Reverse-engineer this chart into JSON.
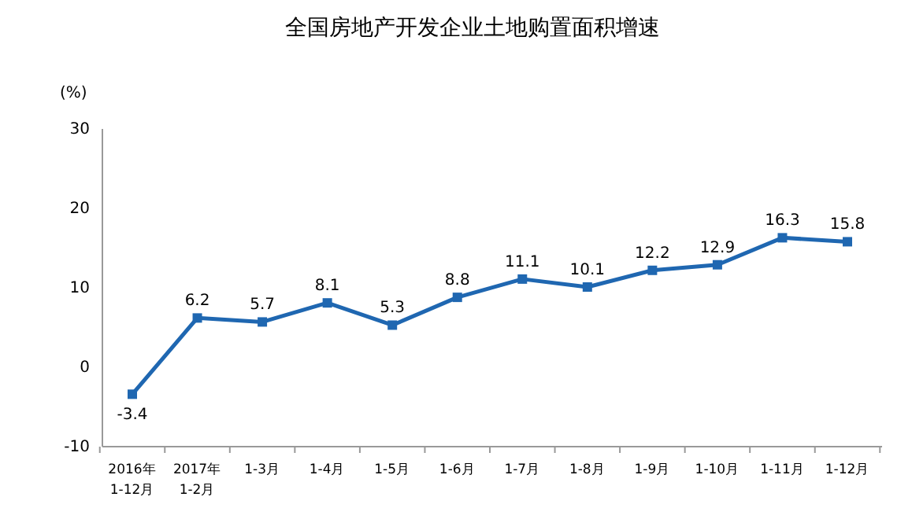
{
  "chart_data": {
    "type": "line",
    "title": "全国房地产开发企业土地购置面积增速",
    "ylabel": "(%)",
    "categories": [
      "2016年\n1-12月",
      "2017年\n1-2月",
      "1-3月",
      "1-4月",
      "1-5月",
      "1-6月",
      "1-7月",
      "1-8月",
      "1-9月",
      "1-10月",
      "1-11月",
      "1-12月"
    ],
    "series": [
      {
        "color": "#1f67b1",
        "values": [
          -3.4,
          6.2,
          5.7,
          8.1,
          5.3,
          8.8,
          11.1,
          10.1,
          12.2,
          12.9,
          16.3,
          15.8
        ]
      }
    ],
    "ylim": [
      -10,
      30
    ],
    "yticks": [
      -10,
      0,
      10,
      20,
      30
    ],
    "grid": false,
    "marker": "square",
    "line_style": "solid",
    "data_labels": true
  }
}
